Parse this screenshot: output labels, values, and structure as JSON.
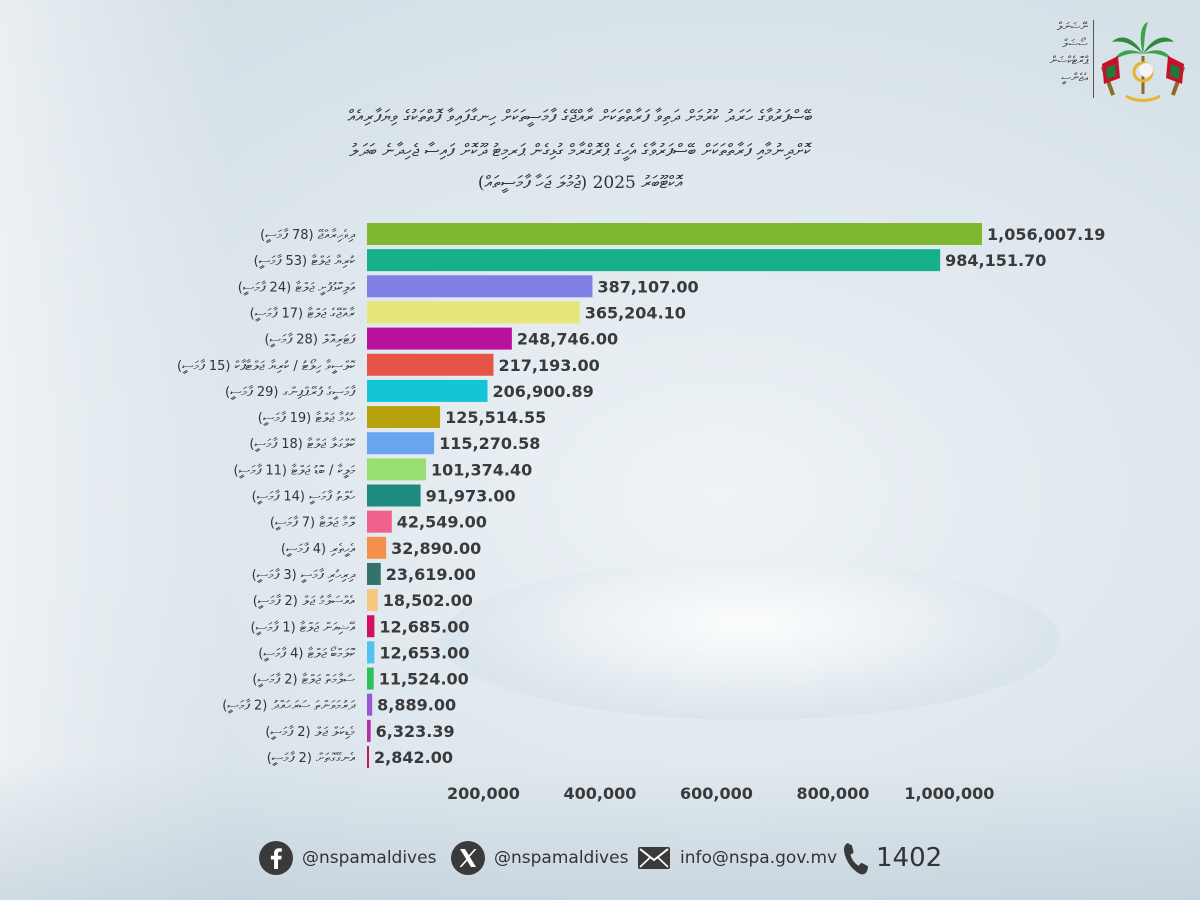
{
  "header": {
    "org_lines": [
      "ނޭޝަނަލް",
      "ސޯޝަލް",
      "ޕްރޮޓެކްޝަން",
      "އެޖެންސީ"
    ],
    "title_line1": "ބޭސްފަރުވާގެ ހަރަދު ކުރުމަށް ދަތިވާ ފަރާތްތަކަށް ރާއްޖޭގެ ފާމަސީތަކަށް ހިނގާފައިވާ ފޮތްތަކުގެ ވިޔަފާރިއެއް",
    "title_line2": "ކޮށްދިނުމާއި ފަރާތްތަކަށް ބޭސްފަރުވާގެ އެހީގެ ޕްރޮގްރާމް ގުޅިގެން ޕަރމިޓު ދޫކޮށް ފައިސާ ޖެހިދާނެ ބަދަލު",
    "title_line3": "އޮކްޓޫބަރު 2025 (ޖުމުލަ ޖަހާ ފާމަސީތައް)"
  },
  "chart_data": {
    "type": "bar",
    "orientation": "horizontal",
    "categories": [
      "ދިވެހިރާއްޖޭ (78 ފާމަސީ)",
      "ކުރިޔާ ޖަލްޓާ (53 ފާމަސީ)",
      "އަލިކޮޅުފުށީ ޖަލްޓާ (24 ފާމަސީ)",
      "ރާއްޖޭގެ ޖަލްޓާ (17 ފާމަސީ)",
      "ފަޓަރިއޮލް (28 ފާމަސީ)",
      "ކޮލްސީވާ ހިލޯޓު / ކުރިޔާ ޖަލްޓާޕާކް (15 ފާމަސީ)",
      "ފާމަސީގެ ފުރޭޕްޕިންގ (29 ފާމަސީ)",
      "ހުޅުމާ ޖަލްޓާ (19 ފާމަސީ)",
      "ކޮލްގަލާ ޖަލްޓާ (18 ފާމަސީ)",
      "މަލީކާ / ބޮޑު ޖަލްޓާ (11 ފާމަސީ)",
      "ހެލްތު ފާމަސީ (14 ފާމަސީ)",
      "ލޭމާ ޖަލްޓާ (7 ފާމަސީ)",
      "އެހީތެރި (4 ފާމަސީ)",
      "ދިރިހުރި ފާމަސީ (3 ފާމަސީ)",
      "އެއްސަލާމު ޖަލް (2 ފާމަސީ)",
      "އޭޝިއަން ޖަލްޓާ (1 ފާމަސީ)",
      "ކޮލަމްބޯ ޖަލްޓާ (4 ފާމަސީ)",
      "ސަލާމަތް ޖަލްޓާ (2 ފާމަސީ)",
      "ދަރުމަވަންތަ ސަރަހައްދު (2 ފާމަސީ)",
      "މެޑިކަލް ޖަލް (2 ފާމަސީ)",
      "އެނގޭގޮތަށް (2 ފާމަސީ)"
    ],
    "values": [
      1056007.19,
      984151.7,
      387107.0,
      365204.1,
      248746.0,
      217193.0,
      206900.89,
      125514.55,
      115270.58,
      101374.4,
      91973.0,
      42549.0,
      32890.0,
      23619.0,
      18502.0,
      12685.0,
      12653.0,
      11524.0,
      8889.0,
      6323.39,
      2842.0
    ],
    "value_labels": [
      "1,056,007.19",
      "984,151.70",
      "387,107.00",
      "365,204.10",
      "248,746.00",
      "217,193.00",
      "206,900.89",
      "125,514.55",
      "115,270.58",
      "101,374.40",
      "91,973.00",
      "42,549.00",
      "32,890.00",
      "23,619.00",
      "18,502.00",
      "12,685.00",
      "12,653.00",
      "11,524.00",
      "8,889.00",
      "6,323.39",
      "2,842.00"
    ],
    "colors": [
      "#7db82e",
      "#16b08a",
      "#7f7fe6",
      "#e8e679",
      "#b8129e",
      "#e55446",
      "#14c5d8",
      "#b6a30e",
      "#6aa6f0",
      "#98de70",
      "#1f8a80",
      "#f0608d",
      "#f3904a",
      "#33736b",
      "#f6c77f",
      "#d40d62",
      "#4ec3ec",
      "#2fc05e",
      "#9b57cf",
      "#b22fa8",
      "#c2185b"
    ],
    "x_ticks": [
      "200,000",
      "400,000",
      "600,000",
      "800,000",
      "1,000,000"
    ],
    "x_tick_values": [
      200000,
      400000,
      600000,
      800000,
      1000000
    ],
    "xlim": [
      0,
      1100000
    ],
    "grid": false,
    "legend": "none"
  },
  "footer": {
    "facebook": "@nspamaldives",
    "x": "@nspamaldives",
    "email": "info@nspa.gov.mv",
    "phone": "1402",
    "icons": [
      "facebook-icon",
      "x-icon",
      "mail-icon",
      "phone-icon"
    ]
  }
}
